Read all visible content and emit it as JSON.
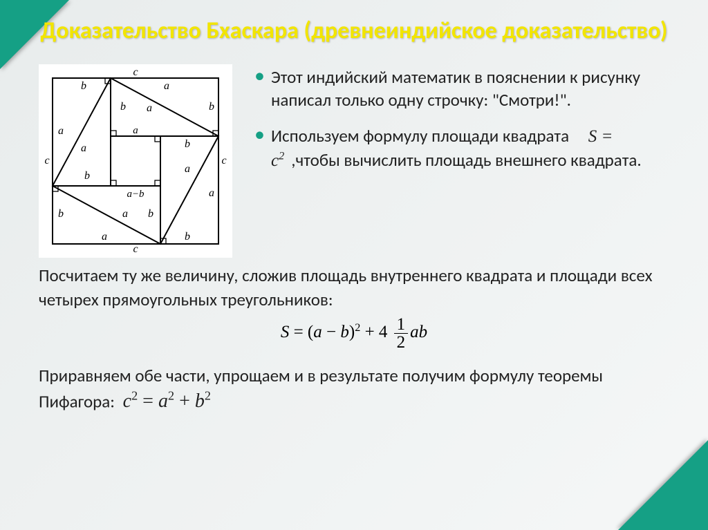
{
  "title": "Доказательство Бхаскара (древнеиндийское доказательство)",
  "bullets": {
    "b1": "Этот индийский математик в пояснении к рисунку написал только одну строчку: \"Смотри!\".",
    "b2_a": "Используем формулу площади квадрата",
    "b2_b": ",чтобы вычислить площадь внешнего квадрата."
  },
  "para1": "Посчитаем ту же величину, сложив площадь внутреннего квадрата и площади всех четырех прямоугольных треугольников:",
  "para2": "Приравняем обе части, упрощаем и в результате получим формулу теоремы Пифагора:",
  "formulas": {
    "f1_html": "<span class='mi'>S</span> = <span class='mi'>c</span><sup>2</sup>",
    "f2_html": "<span class='mi'>S</span> = (<span class='mi'>a</span> − <span class='mi'>b</span>)<sup>2</sup> + 4 <span class='frac'><span class='n'>1</span><span class='d'>2</span></span><span class='mi'>ab</span>",
    "f3_html": "<span class='mi'>c</span><sup>2</sup> = <span class='mi'>a</span><sup>2</sup> + <span class='mi'>b</span><sup>2</sup>"
  },
  "diagram": {
    "outer": 240,
    "labels": {
      "a": "a",
      "b": "b",
      "c": "c",
      "ab": "a−b"
    },
    "stroke": "#000000",
    "bg": "#ffffff",
    "font_family": "Times New Roman, serif",
    "font_size": 16
  },
  "colors": {
    "accent": "#15a085",
    "title": "#f2e500",
    "text": "#222222",
    "bg_from": "#e8ecec",
    "bg_to": "#f5f7f7"
  }
}
